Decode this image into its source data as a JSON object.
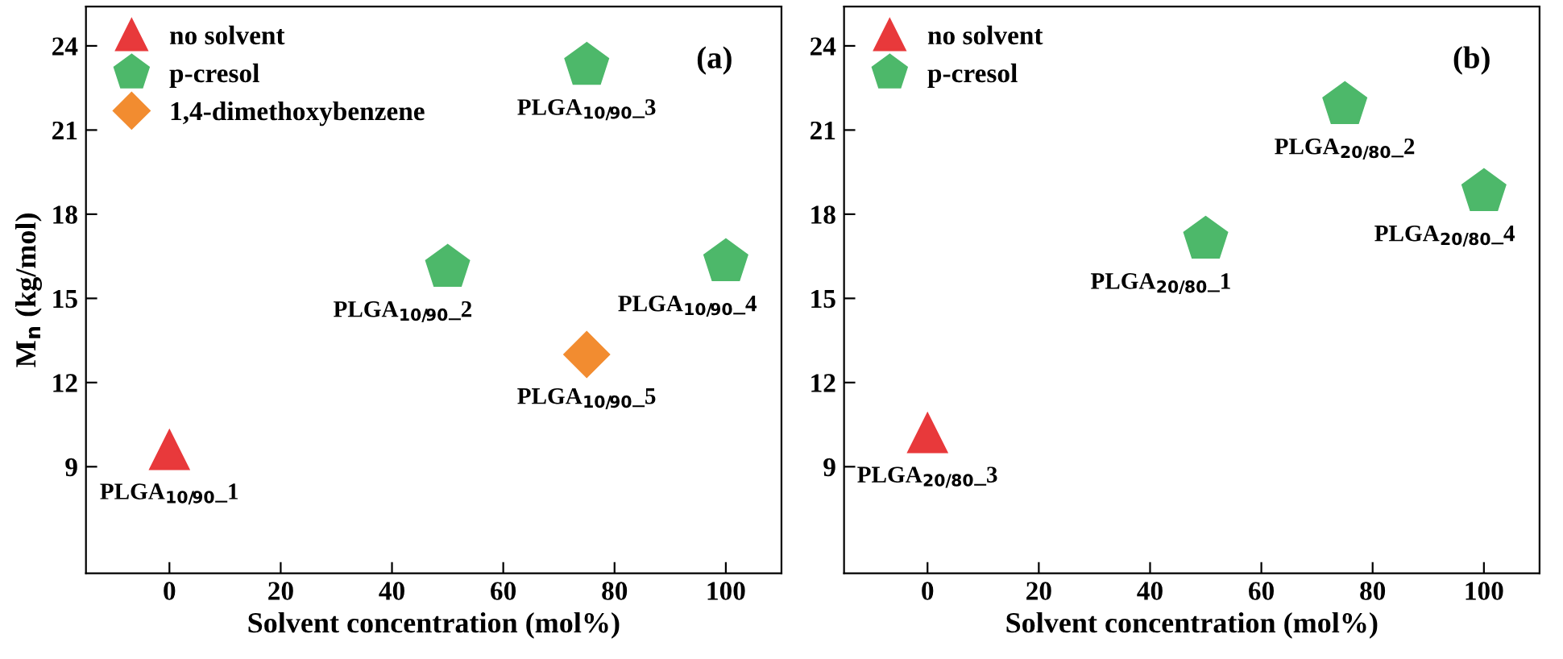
{
  "chart_data": [
    {
      "type": "scatter",
      "xlabel": "Solvent concentration (mol%)",
      "ylabel": "M$_{n}$ (kg/mol)",
      "xlim": [
        -15,
        110
      ],
      "ylim": [
        5.2,
        25.4
      ],
      "xticks": [
        0,
        20,
        40,
        60,
        80,
        100
      ],
      "yticks": [
        9,
        12,
        15,
        18,
        21,
        24
      ],
      "legend": "top left",
      "grid": false,
      "series": [
        {
          "name": "no solvent",
          "color": "#e8393b",
          "marker": "triangle",
          "x": [
            0
          ],
          "values": [
            9.6
          ]
        },
        {
          "name": "p-cresol",
          "color": "#4db86a",
          "x": [
            50,
            75,
            100
          ],
          "values": [
            16.1,
            23.3,
            16.3
          ]
        },
        {
          "name": "1,4-dimethoxybenzene",
          "color": "#f28c30",
          "marker": "diamond",
          "x": [
            75
          ],
          "values": [
            13.0
          ]
        }
      ],
      "annotations": [
        "(a)",
        {
          "text": "PLGA$_{10/90}$_1",
          "x": 0,
          "y": 9.6
        },
        {
          "text": "PLGA$_{10/90}$_2",
          "x": 50,
          "y": 16.1
        },
        {
          "text": "PLGA$_{10/90}$_3",
          "x": 75,
          "y": 23.3
        },
        {
          "text": "PLGA$_{10/90}$_4",
          "x": 100,
          "y": 16.3
        },
        {
          "text": "PLGA$_{10/90}$_5",
          "x": 75,
          "y": 13.0
        }
      ]
    },
    {
      "type": "scatter",
      "xlabel": "Solvent concentration (mol%)",
      "xlim": [
        -15,
        110
      ],
      "ylim": [
        5.2,
        25.4
      ],
      "xticks": [
        0,
        20,
        40,
        60,
        80,
        100
      ],
      "yticks": [
        9,
        12,
        15,
        18,
        21,
        24
      ],
      "legend": "top left",
      "grid": false,
      "series": [
        {
          "name": "no solvent",
          "color": "#e8393b",
          "marker": "triangle",
          "x": [
            0
          ],
          "values": [
            10.2
          ]
        },
        {
          "name": "p-cresol",
          "color": "#4db86a",
          "x": [
            50,
            75,
            100
          ],
          "values": [
            17.1,
            21.9,
            18.8
          ]
        }
      ],
      "annotations": [
        "(b)",
        {
          "text": "PLGA$_{20/80}$_1",
          "x": 50,
          "y": 17.1
        },
        {
          "text": "PLGA$_{20/80}$_2",
          "x": 75,
          "y": 21.9
        },
        {
          "text": "PLGA$_{20/80}$_4",
          "x": 100,
          "y": 18.8
        },
        {
          "text": "PLGA$_{20/80}$_3",
          "x": 0,
          "y": 10.2
        }
      ]
    }
  ]
}
